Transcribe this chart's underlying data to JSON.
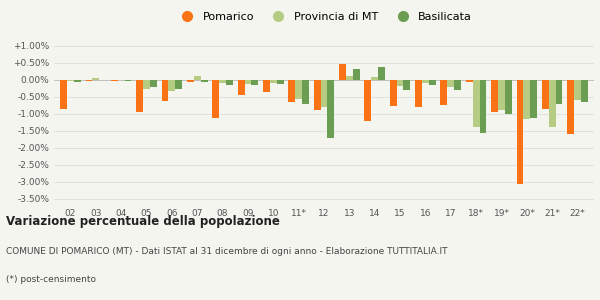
{
  "years": [
    "02",
    "03",
    "04",
    "05",
    "06",
    "07",
    "08",
    "09",
    "10",
    "11*",
    "12",
    "13",
    "14",
    "15",
    "16",
    "17",
    "18*",
    "19*",
    "20*",
    "21*",
    "22*"
  ],
  "pomarico": [
    -0.85,
    -0.04,
    -0.04,
    -0.95,
    -0.62,
    -0.05,
    -1.12,
    -0.45,
    -0.35,
    -0.65,
    -0.88,
    0.46,
    -1.2,
    -0.76,
    -0.8,
    -0.74,
    -0.06,
    -0.96,
    -3.05,
    -0.86,
    -1.58
  ],
  "provincia_mt": [
    -0.02,
    0.05,
    0.0,
    -0.28,
    -0.32,
    0.12,
    -0.08,
    -0.12,
    -0.08,
    -0.55,
    -0.8,
    0.1,
    0.08,
    -0.18,
    -0.1,
    -0.22,
    -1.4,
    -0.9,
    -1.15,
    -1.38,
    -0.6
  ],
  "basilicata": [
    -0.05,
    0.0,
    -0.02,
    -0.22,
    -0.28,
    -0.05,
    -0.15,
    -0.15,
    -0.12,
    -0.72,
    -1.7,
    0.33,
    0.38,
    -0.3,
    -0.15,
    -0.3,
    -1.55,
    -1.0,
    -1.12,
    -0.72,
    -0.65
  ],
  "color_pomarico": "#f97316",
  "color_provincia": "#b5cc82",
  "color_basilicata": "#6b9e52",
  "title": "Variazione percentuale della popolazione",
  "subtitle1": "COMUNE DI POMARICO (MT) - Dati ISTAT al 31 dicembre di ogni anno - Elaborazione TUTTITALIA.IT",
  "subtitle2": "(*) post-censimento",
  "bg_color": "#f5f5f0",
  "ylim_min": -3.65,
  "ylim_max": 1.2,
  "yticks": [
    1.0,
    0.5,
    0.0,
    -0.5,
    -1.0,
    -1.5,
    -2.0,
    -2.5,
    -3.0,
    -3.5
  ],
  "ytick_labels": [
    "+1.00%",
    "+0.50%",
    "0.00%",
    "-0.50%",
    "-1.00%",
    "-1.50%",
    "-2.00%",
    "-2.50%",
    "-3.00%",
    "-3.50%"
  ]
}
